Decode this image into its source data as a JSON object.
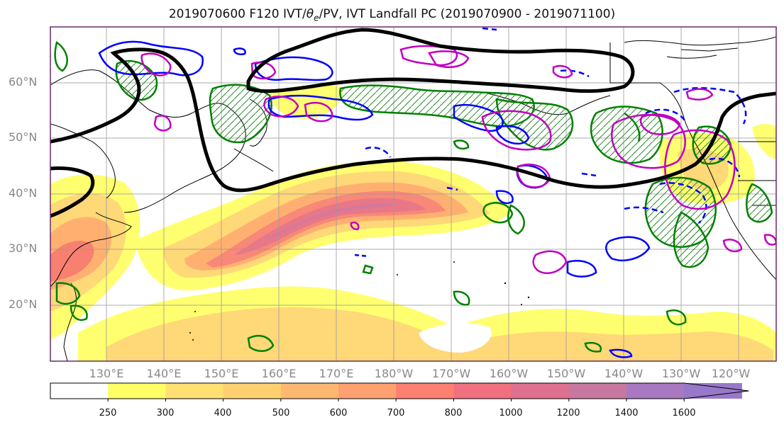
{
  "title_prefix": "2019070600 F120 IVT/",
  "title_theta": "θ",
  "title_sub": "e",
  "title_suffix": "/PV, IVT Landfall PC (2019070900 - 2019071100)",
  "map": {
    "lat_labels": [
      "60°N",
      "50°N",
      "40°N",
      "30°N",
      "20°N"
    ],
    "lon_labels": [
      "130°E",
      "140°E",
      "150°E",
      "160°E",
      "170°E",
      "180°W",
      "170°W",
      "160°W",
      "150°W",
      "140°W",
      "130°W",
      "120°W"
    ]
  },
  "colorbar": {
    "ticks": [
      "250",
      "300",
      "400",
      "500",
      "600",
      "700",
      "800",
      "1000",
      "1200",
      "1400",
      "1600"
    ],
    "colors": [
      "#ffffff",
      "#ffff66",
      "#ffe070",
      "#ffd070",
      "#ffb870",
      "#ffa070",
      "#ff8070",
      "#f07080",
      "#e07090",
      "#c878a0",
      "#a878c0",
      "#9878c8"
    ]
  },
  "colors": {
    "pv_contour": "#000000",
    "theta_green": "#008000",
    "theta_blue": "#0000ff",
    "theta_magenta": "#c000c0"
  }
}
